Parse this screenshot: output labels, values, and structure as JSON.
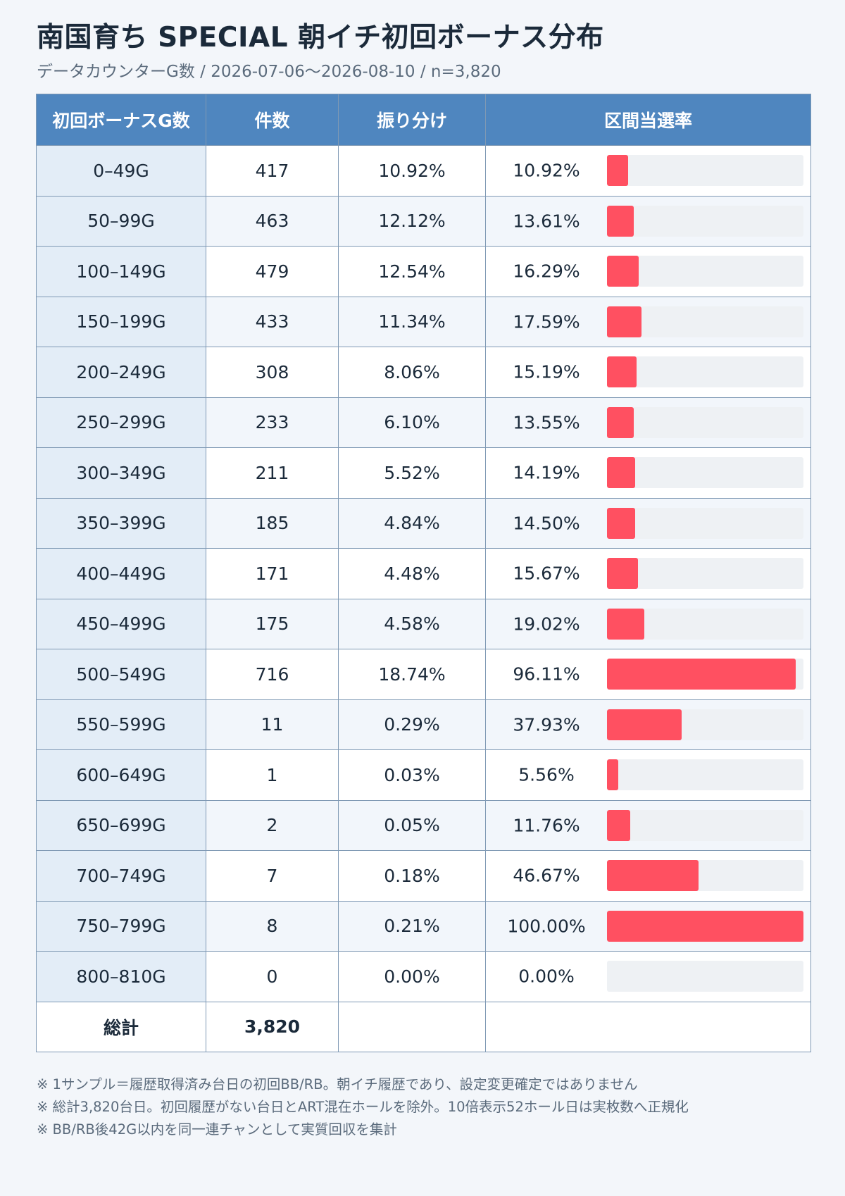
{
  "title": "南国育ち SPECIAL 朝イチ初回ボーナス分布",
  "subtitle": "データカウンターG数 / 2026-07-06〜2026-08-10 / n=3,820",
  "headers": [
    "初回ボーナスG数",
    "件数",
    "振り分け",
    "区間当選率"
  ],
  "chart_data": {
    "type": "table",
    "columns": [
      "初回ボーナスG数",
      "件数",
      "振り分け",
      "区間当選率"
    ],
    "rows": [
      {
        "range": "0–49G",
        "count": "417",
        "share": "10.92%",
        "rate_label": "10.92%",
        "rate": 10.92
      },
      {
        "range": "50–99G",
        "count": "463",
        "share": "12.12%",
        "rate_label": "13.61%",
        "rate": 13.61
      },
      {
        "range": "100–149G",
        "count": "479",
        "share": "12.54%",
        "rate_label": "16.29%",
        "rate": 16.29
      },
      {
        "range": "150–199G",
        "count": "433",
        "share": "11.34%",
        "rate_label": "17.59%",
        "rate": 17.59
      },
      {
        "range": "200–249G",
        "count": "308",
        "share": "8.06%",
        "rate_label": "15.19%",
        "rate": 15.19
      },
      {
        "range": "250–299G",
        "count": "233",
        "share": "6.10%",
        "rate_label": "13.55%",
        "rate": 13.55
      },
      {
        "range": "300–349G",
        "count": "211",
        "share": "5.52%",
        "rate_label": "14.19%",
        "rate": 14.19
      },
      {
        "range": "350–399G",
        "count": "185",
        "share": "4.84%",
        "rate_label": "14.50%",
        "rate": 14.5
      },
      {
        "range": "400–449G",
        "count": "171",
        "share": "4.48%",
        "rate_label": "15.67%",
        "rate": 15.67
      },
      {
        "range": "450–499G",
        "count": "175",
        "share": "4.58%",
        "rate_label": "19.02%",
        "rate": 19.02
      },
      {
        "range": "500–549G",
        "count": "716",
        "share": "18.74%",
        "rate_label": "96.11%",
        "rate": 96.11
      },
      {
        "range": "550–599G",
        "count": "11",
        "share": "0.29%",
        "rate_label": "37.93%",
        "rate": 37.93
      },
      {
        "range": "600–649G",
        "count": "1",
        "share": "0.03%",
        "rate_label": "5.56%",
        "rate": 5.56
      },
      {
        "range": "650–699G",
        "count": "2",
        "share": "0.05%",
        "rate_label": "11.76%",
        "rate": 11.76
      },
      {
        "range": "700–749G",
        "count": "7",
        "share": "0.18%",
        "rate_label": "46.67%",
        "rate": 46.67
      },
      {
        "range": "750–799G",
        "count": "8",
        "share": "0.21%",
        "rate_label": "100.00%",
        "rate": 100.0
      },
      {
        "range": "800–810G",
        "count": "0",
        "share": "0.00%",
        "rate_label": "0.00%",
        "rate": 0.0
      }
    ],
    "rate_range": [
      0,
      100
    ],
    "total": {
      "label": "総計",
      "count": "3,820"
    }
  },
  "colors": {
    "header_bg": "#4f86bf",
    "bar_fill": "#ff5061",
    "bar_track": "#eef1f4",
    "range_cell_bg": "#e3edf7"
  },
  "notes": [
    "※ 1サンプル＝履歴取得済み台日の初回BB/RB。朝イチ履歴であり、設定変更確定ではありません",
    "※ 総計3,820台日。初回履歴がない台日とART混在ホールを除外。10倍表示52ホール日は実枚数へ正規化",
    "※ BB/RB後42G以内を同一連チャンとして実質回収を集計"
  ]
}
